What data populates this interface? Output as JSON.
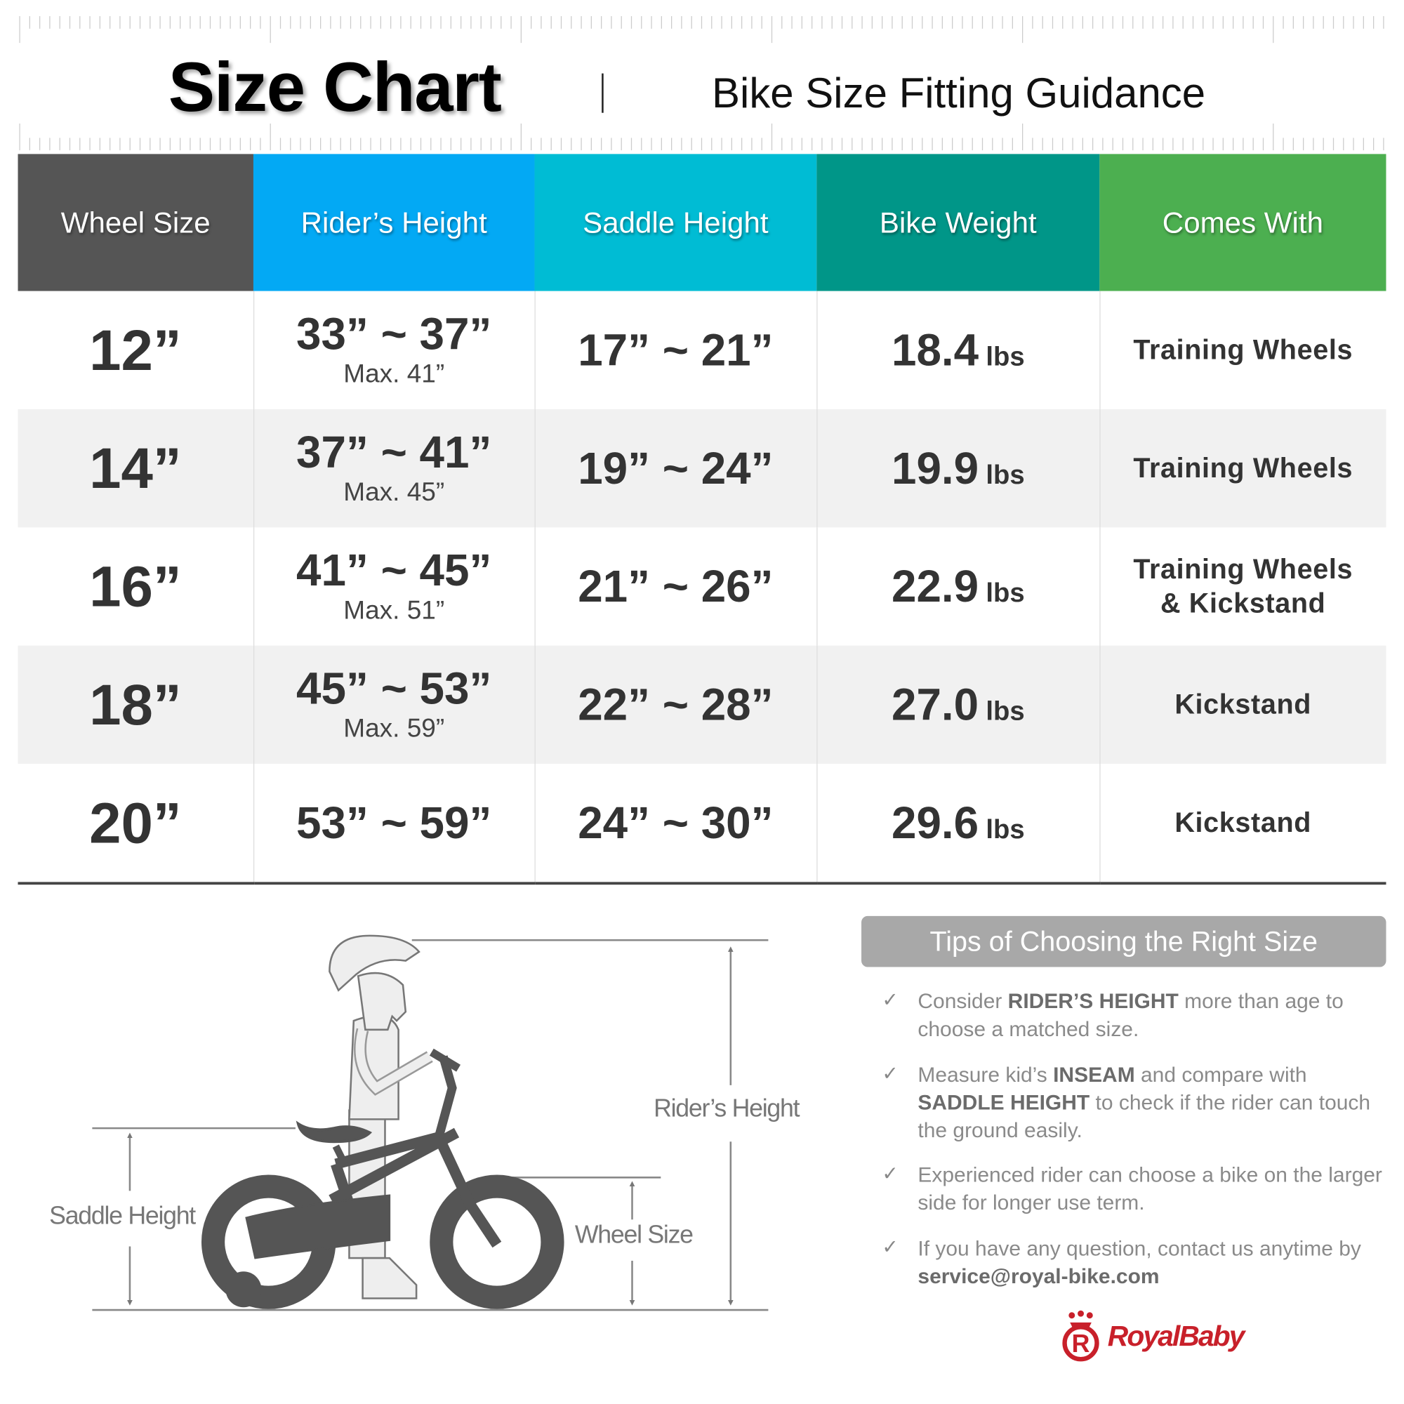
{
  "header": {
    "title": "Size Chart",
    "subtitle": "Bike Size Fitting Guidance"
  },
  "table": {
    "columns": [
      {
        "label": "Wheel Size",
        "color": "#555555"
      },
      {
        "label": "Rider’s Height",
        "color": "#03a9f4"
      },
      {
        "label": "Saddle Height",
        "color": "#00bcd4"
      },
      {
        "label": "Bike Weight",
        "color": "#009688"
      },
      {
        "label": "Comes With",
        "color": "#4caf50"
      }
    ],
    "rows": [
      {
        "wheel": "12”",
        "rider": "33” ~ 37”",
        "max": "Max. 41”",
        "saddle": "17” ~ 21”",
        "weight": "18.4",
        "unit": "lbs",
        "comes": "Training Wheels",
        "comes2": ""
      },
      {
        "wheel": "14”",
        "rider": "37” ~ 41”",
        "max": "Max. 45”",
        "saddle": "19” ~ 24”",
        "weight": "19.9",
        "unit": "lbs",
        "comes": "Training Wheels",
        "comes2": ""
      },
      {
        "wheel": "16”",
        "rider": "41” ~ 45”",
        "max": "Max. 51”",
        "saddle": "21” ~ 26”",
        "weight": "22.9",
        "unit": "lbs",
        "comes": "Training Wheels",
        "comes2": "& Kickstand"
      },
      {
        "wheel": "18”",
        "rider": "45” ~ 53”",
        "max": "Max. 59”",
        "saddle": "22” ~ 28”",
        "weight": "27.0",
        "unit": "lbs",
        "comes": "Kickstand",
        "comes2": ""
      },
      {
        "wheel": "20”",
        "rider": "53” ~ 59”",
        "max": "",
        "saddle": "24” ~ 30”",
        "weight": "29.6",
        "unit": "lbs",
        "comes": "Kickstand",
        "comes2": ""
      }
    ]
  },
  "diagram": {
    "riders_height": "Rider’s Height",
    "saddle_height": "Saddle Height",
    "wheel_size": "Wheel Size",
    "helmet_text": "RoyalBaby"
  },
  "tips": {
    "title": "Tips of Choosing the Right Size",
    "check_icon": "✓",
    "items": [
      {
        "a": "Consider ",
        "b": "RIDER’S HEIGHT",
        "c": " more than age to choose a matched size.",
        "d": "",
        "e": ""
      },
      {
        "a": "Measure kid’s ",
        "b": "INSEAM",
        "c": " and compare with ",
        "d": "SADDLE HEIGHT",
        "e": " to check if the rider can touch the ground easily."
      },
      {
        "a": "Experienced rider can choose a bike on the larger side for longer use term.",
        "b": "",
        "c": "",
        "d": "",
        "e": ""
      },
      {
        "a": "If you have any question, contact us anytime by ",
        "b": "service@royal-bike.com",
        "c": "",
        "d": "",
        "e": ""
      }
    ]
  },
  "brand": {
    "name": "RoyalBaby",
    "color": "#c8202a"
  }
}
